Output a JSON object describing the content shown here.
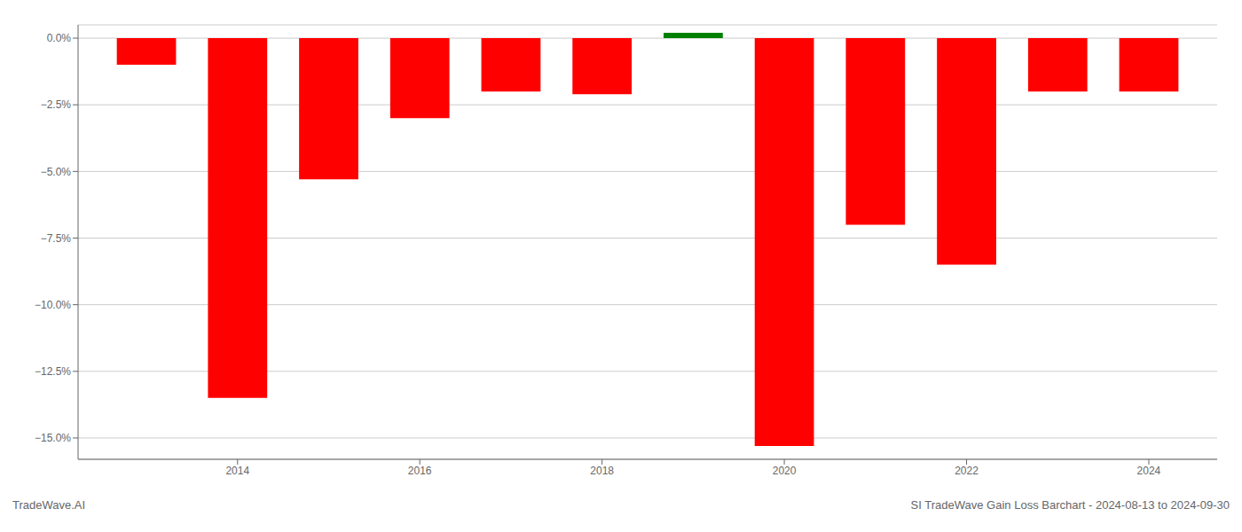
{
  "chart_data": {
    "type": "bar",
    "x": [
      2013,
      2014,
      2015,
      2016,
      2017,
      2018,
      2019,
      2020,
      2021,
      2022,
      2023,
      2024
    ],
    "values": [
      -0.01,
      -0.135,
      -0.053,
      -0.03,
      -0.02,
      -0.021,
      0.002,
      -0.153,
      -0.07,
      -0.085,
      -0.02,
      -0.02
    ],
    "colors": [
      "#ff0000",
      "#ff0000",
      "#ff0000",
      "#ff0000",
      "#ff0000",
      "#ff0000",
      "#008000",
      "#ff0000",
      "#ff0000",
      "#ff0000",
      "#ff0000",
      "#ff0000"
    ],
    "xlim": [
      2012.25,
      2024.75
    ],
    "xticks": [
      2014,
      2016,
      2018,
      2020,
      2022,
      2024
    ],
    "ylim": [
      -0.158,
      0.005
    ],
    "yticks": [
      {
        "value": 0.0,
        "label": "0.0%"
      },
      {
        "value": -0.025,
        "label": "−2.5%"
      },
      {
        "value": -0.05,
        "label": "−5.0%"
      },
      {
        "value": -0.075,
        "label": "−7.5%"
      },
      {
        "value": -0.1,
        "label": "−10.0%"
      },
      {
        "value": -0.125,
        "label": "−12.5%"
      },
      {
        "value": -0.15,
        "label": "−15.0%"
      }
    ],
    "grid": true,
    "annotations": [
      "TradeWave.AI",
      "SI TradeWave Gain Loss Barchart - 2024-08-13 to 2024-09-30"
    ]
  }
}
